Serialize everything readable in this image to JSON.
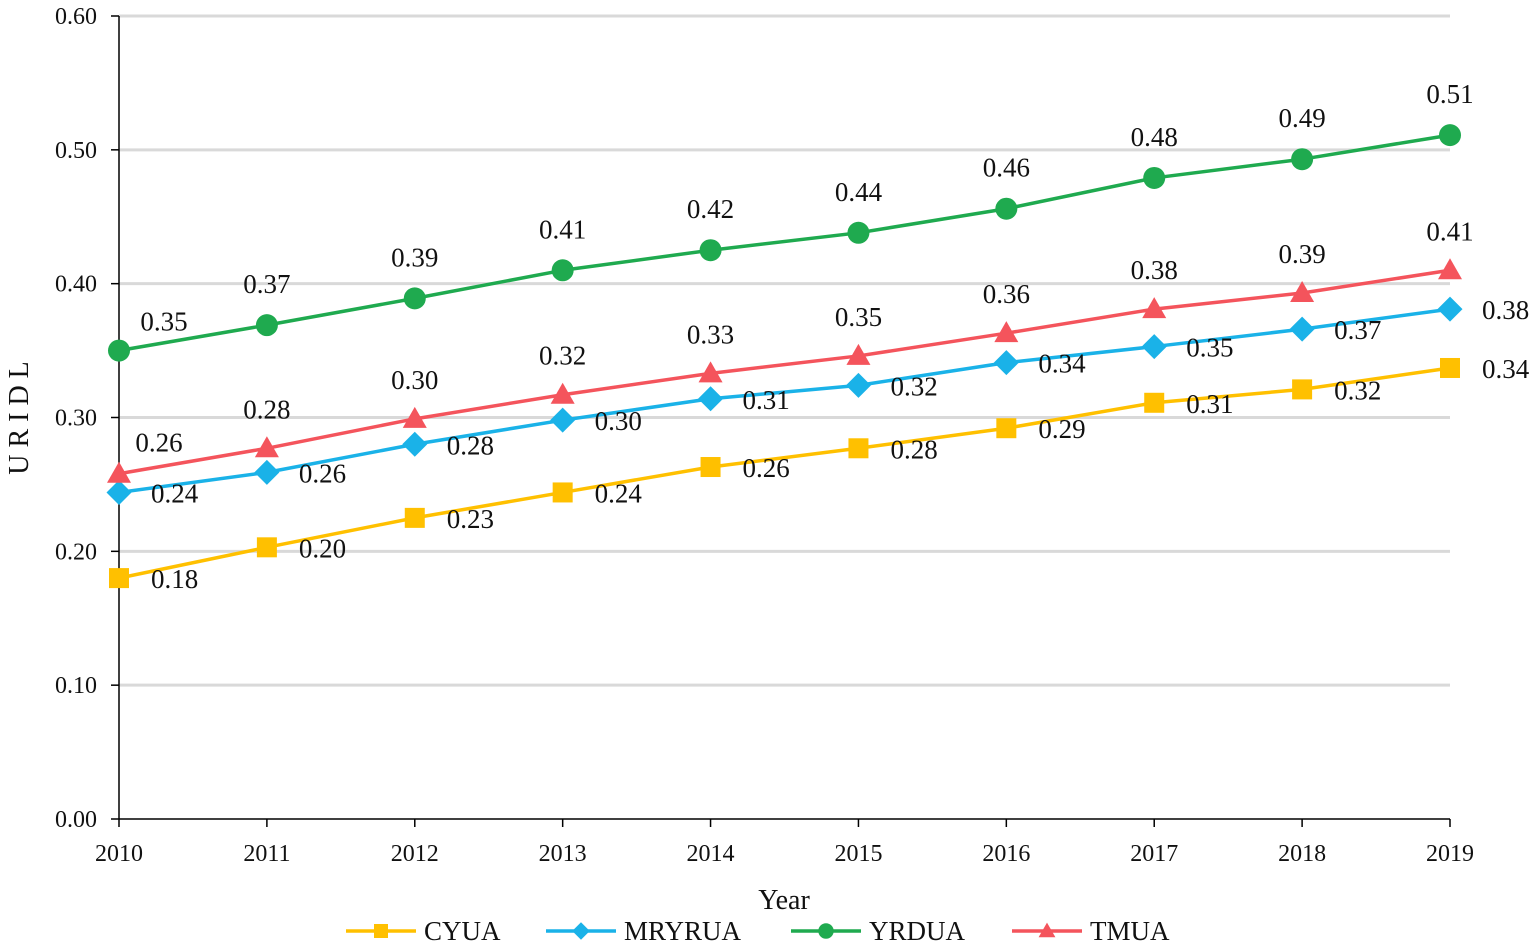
{
  "chart_data": {
    "type": "line",
    "title": "",
    "xlabel": "Year",
    "ylabel": "U R I D L",
    "categories": [
      "2010",
      "2011",
      "2012",
      "2013",
      "2014",
      "2015",
      "2016",
      "2017",
      "2018",
      "2019"
    ],
    "ylim": [
      0,
      0.6
    ],
    "yticks": [
      "0.00",
      "0.10",
      "0.20",
      "0.30",
      "0.40",
      "0.50",
      "0.60"
    ],
    "grid": true,
    "legend_position": "bottom",
    "series": [
      {
        "name": "CYUA",
        "color": "#ffc000",
        "marker": "square",
        "values": [
          0.18,
          0.203,
          0.225,
          0.244,
          0.263,
          0.277,
          0.292,
          0.311,
          0.321,
          0.337
        ],
        "labels": [
          "0.18",
          "0.20",
          "0.23",
          "0.24",
          "0.26",
          "0.28",
          "0.29",
          "0.31",
          "0.32",
          "0.34"
        ]
      },
      {
        "name": "MRYRUA",
        "color": "#1ab2e8",
        "marker": "diamond",
        "values": [
          0.244,
          0.259,
          0.28,
          0.298,
          0.314,
          0.324,
          0.341,
          0.353,
          0.366,
          0.381
        ],
        "labels": [
          "0.24",
          "0.26",
          "0.28",
          "0.30",
          "0.31",
          "0.32",
          "0.34",
          "0.35",
          "0.37",
          "0.38"
        ]
      },
      {
        "name": "YRDUA",
        "color": "#1faa4f",
        "marker": "circle",
        "values": [
          0.35,
          0.369,
          0.389,
          0.41,
          0.425,
          0.438,
          0.456,
          0.479,
          0.493,
          0.511
        ],
        "labels": [
          "0.35",
          "0.37",
          "0.39",
          "0.41",
          "0.42",
          "0.44",
          "0.46",
          "0.48",
          "0.49",
          "0.51"
        ]
      },
      {
        "name": "TMUA",
        "color": "#f4545c",
        "marker": "triangle",
        "values": [
          0.258,
          0.277,
          0.299,
          0.317,
          0.333,
          0.346,
          0.363,
          0.381,
          0.393,
          0.41
        ],
        "labels": [
          "0.26",
          "0.28",
          "0.30",
          "0.32",
          "0.33",
          "0.35",
          "0.36",
          "0.38",
          "0.39",
          "0.41"
        ]
      }
    ]
  }
}
